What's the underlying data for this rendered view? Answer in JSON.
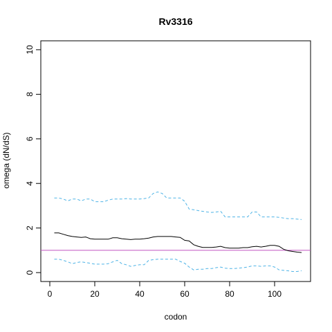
{
  "chart_data": {
    "type": "line",
    "title": "Rv3316",
    "xlabel": "codon",
    "ylabel": "omega (dN/dS)",
    "xlim": [
      -4,
      116
    ],
    "ylim": [
      -0.4,
      10.4
    ],
    "xticks": [
      0,
      20,
      40,
      60,
      80,
      100
    ],
    "yticks": [
      0,
      2,
      4,
      6,
      8,
      10
    ],
    "grid": false,
    "colors": {
      "omega": "#000000",
      "bounds": "#4db3e6",
      "reference": "#c050c0"
    },
    "reference_line": {
      "y": 1
    },
    "series": [
      {
        "style": "solid",
        "x": [
          2,
          4,
          6,
          8,
          10,
          12,
          14,
          16,
          18,
          20,
          22,
          24,
          26,
          28,
          30,
          32,
          34,
          36,
          38,
          40,
          42,
          44,
          46,
          48,
          50,
          52,
          54,
          56,
          58,
          60,
          62,
          64,
          66,
          68,
          70,
          72,
          74,
          76,
          78,
          80,
          82,
          84,
          86,
          88,
          90,
          92,
          94,
          96,
          98,
          100,
          102,
          104,
          106,
          108,
          110,
          112
        ],
        "y": [
          1.78,
          1.78,
          1.72,
          1.66,
          1.62,
          1.6,
          1.58,
          1.6,
          1.52,
          1.5,
          1.5,
          1.5,
          1.5,
          1.56,
          1.56,
          1.52,
          1.5,
          1.48,
          1.5,
          1.5,
          1.52,
          1.55,
          1.6,
          1.62,
          1.62,
          1.62,
          1.62,
          1.6,
          1.58,
          1.45,
          1.42,
          1.25,
          1.18,
          1.13,
          1.13,
          1.13,
          1.15,
          1.18,
          1.12,
          1.1,
          1.1,
          1.1,
          1.12,
          1.12,
          1.16,
          1.18,
          1.15,
          1.18,
          1.22,
          1.22,
          1.18,
          1.05,
          0.98,
          0.95,
          0.92,
          0.9
        ]
      },
      {
        "style": "dashed",
        "x": [
          2,
          4,
          6,
          8,
          10,
          12,
          14,
          16,
          18,
          20,
          22,
          24,
          26,
          28,
          30,
          32,
          34,
          36,
          38,
          40,
          42,
          44,
          46,
          48,
          50,
          52,
          54,
          56,
          58,
          60,
          62,
          64,
          66,
          68,
          70,
          72,
          74,
          76,
          78,
          80,
          82,
          84,
          86,
          88,
          90,
          92,
          94,
          96,
          98,
          100,
          102,
          104,
          106,
          108,
          110,
          112
        ],
        "y": [
          3.35,
          3.35,
          3.3,
          3.22,
          3.3,
          3.3,
          3.22,
          3.3,
          3.3,
          3.18,
          3.18,
          3.18,
          3.25,
          3.3,
          3.3,
          3.3,
          3.32,
          3.3,
          3.3,
          3.3,
          3.32,
          3.35,
          3.55,
          3.62,
          3.55,
          3.35,
          3.35,
          3.35,
          3.35,
          3.2,
          2.85,
          2.82,
          2.78,
          2.75,
          2.72,
          2.7,
          2.72,
          2.75,
          2.5,
          2.5,
          2.5,
          2.5,
          2.5,
          2.5,
          2.72,
          2.72,
          2.5,
          2.5,
          2.5,
          2.5,
          2.48,
          2.45,
          2.42,
          2.42,
          2.4,
          2.38
        ]
      },
      {
        "style": "dashed",
        "x": [
          2,
          4,
          6,
          8,
          10,
          12,
          14,
          16,
          18,
          20,
          22,
          24,
          26,
          28,
          30,
          32,
          34,
          36,
          38,
          40,
          42,
          44,
          46,
          48,
          50,
          52,
          54,
          56,
          58,
          60,
          62,
          64,
          66,
          68,
          70,
          72,
          74,
          76,
          78,
          80,
          82,
          84,
          86,
          88,
          90,
          92,
          94,
          96,
          98,
          100,
          102,
          104,
          106,
          108,
          110,
          112
        ],
        "y": [
          0.6,
          0.6,
          0.55,
          0.48,
          0.4,
          0.45,
          0.48,
          0.45,
          0.42,
          0.38,
          0.38,
          0.38,
          0.4,
          0.48,
          0.55,
          0.4,
          0.35,
          0.28,
          0.32,
          0.35,
          0.35,
          0.55,
          0.58,
          0.6,
          0.6,
          0.6,
          0.6,
          0.6,
          0.5,
          0.42,
          0.25,
          0.12,
          0.15,
          0.15,
          0.18,
          0.18,
          0.22,
          0.25,
          0.2,
          0.18,
          0.18,
          0.2,
          0.22,
          0.25,
          0.3,
          0.3,
          0.28,
          0.3,
          0.3,
          0.25,
          0.12,
          0.1,
          0.08,
          0.05,
          0.05,
          0.08
        ]
      }
    ]
  }
}
